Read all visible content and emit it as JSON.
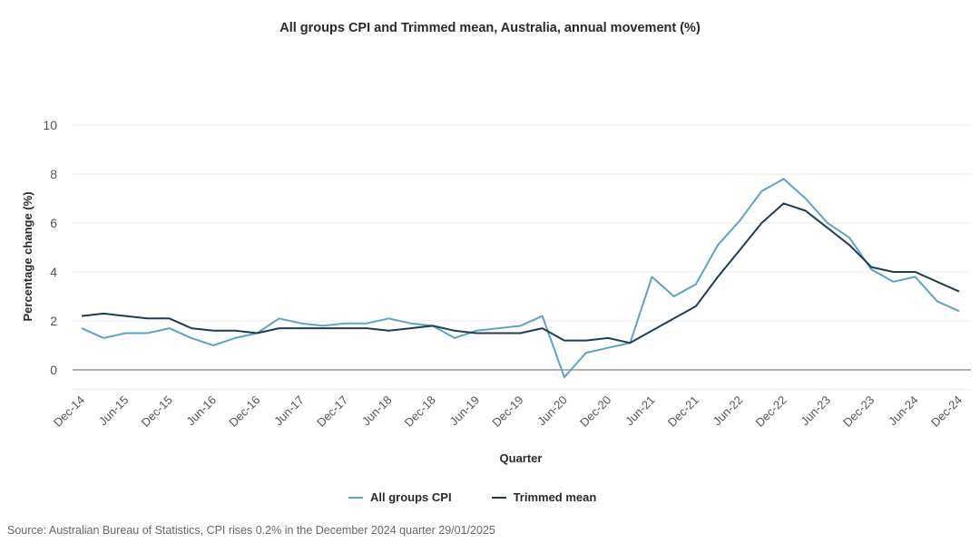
{
  "chart_data": {
    "type": "line",
    "title": "All groups CPI and Trimmed mean, Australia, annual movement (%)",
    "xlabel": "Quarter",
    "ylabel": "Percentage change (%)",
    "ylim": [
      -0.8,
      10
    ],
    "yticks": [
      0,
      2,
      4,
      6,
      8,
      10
    ],
    "grid": true,
    "legend_position": "bottom-center",
    "x_tick_labels": [
      "Dec-14",
      "Jun-15",
      "Dec-15",
      "Jun-16",
      "Dec-16",
      "Jun-17",
      "Dec-17",
      "Jun-18",
      "Dec-18",
      "Jun-19",
      "Dec-19",
      "Jun-20",
      "Dec-20",
      "Jun-21",
      "Dec-21",
      "Jun-22",
      "Dec-22",
      "Jun-23",
      "Dec-23",
      "Jun-24",
      "Dec-24"
    ],
    "x": [
      "Dec-14",
      "Mar-15",
      "Jun-15",
      "Sep-15",
      "Dec-15",
      "Mar-16",
      "Jun-16",
      "Sep-16",
      "Dec-16",
      "Mar-17",
      "Jun-17",
      "Sep-17",
      "Dec-17",
      "Mar-18",
      "Jun-18",
      "Sep-18",
      "Dec-18",
      "Mar-19",
      "Jun-19",
      "Sep-19",
      "Dec-19",
      "Mar-20",
      "Jun-20",
      "Sep-20",
      "Dec-20",
      "Mar-21",
      "Jun-21",
      "Sep-21",
      "Dec-21",
      "Mar-22",
      "Jun-22",
      "Sep-22",
      "Dec-22",
      "Mar-23",
      "Jun-23",
      "Sep-23",
      "Dec-23",
      "Mar-24",
      "Jun-24",
      "Sep-24",
      "Dec-24"
    ],
    "series": [
      {
        "name": "All groups CPI",
        "color": "#5fa3c0",
        "values": [
          1.7,
          1.3,
          1.5,
          1.5,
          1.7,
          1.3,
          1.0,
          1.3,
          1.5,
          2.1,
          1.9,
          1.8,
          1.9,
          1.9,
          2.1,
          1.9,
          1.8,
          1.3,
          1.6,
          1.7,
          1.8,
          2.2,
          -0.3,
          0.7,
          0.9,
          1.1,
          3.8,
          3.0,
          3.5,
          5.1,
          6.1,
          7.3,
          7.8,
          7.0,
          6.0,
          5.4,
          4.1,
          3.6,
          3.8,
          2.8,
          2.4
        ]
      },
      {
        "name": "Trimmed mean",
        "color": "#1e3d52",
        "values": [
          2.2,
          2.3,
          2.2,
          2.1,
          2.1,
          1.7,
          1.6,
          1.6,
          1.5,
          1.7,
          1.7,
          1.7,
          1.7,
          1.7,
          1.6,
          1.7,
          1.8,
          1.6,
          1.5,
          1.5,
          1.5,
          1.7,
          1.2,
          1.2,
          1.3,
          1.1,
          1.6,
          2.1,
          2.6,
          3.8,
          4.9,
          6.0,
          6.8,
          6.5,
          5.8,
          5.1,
          4.2,
          4.0,
          4.0,
          3.6,
          3.2
        ]
      }
    ]
  },
  "source": "Source: Australian Bureau of Statistics, CPI rises 0.2% in the December 2024 quarter 29/01/2025"
}
